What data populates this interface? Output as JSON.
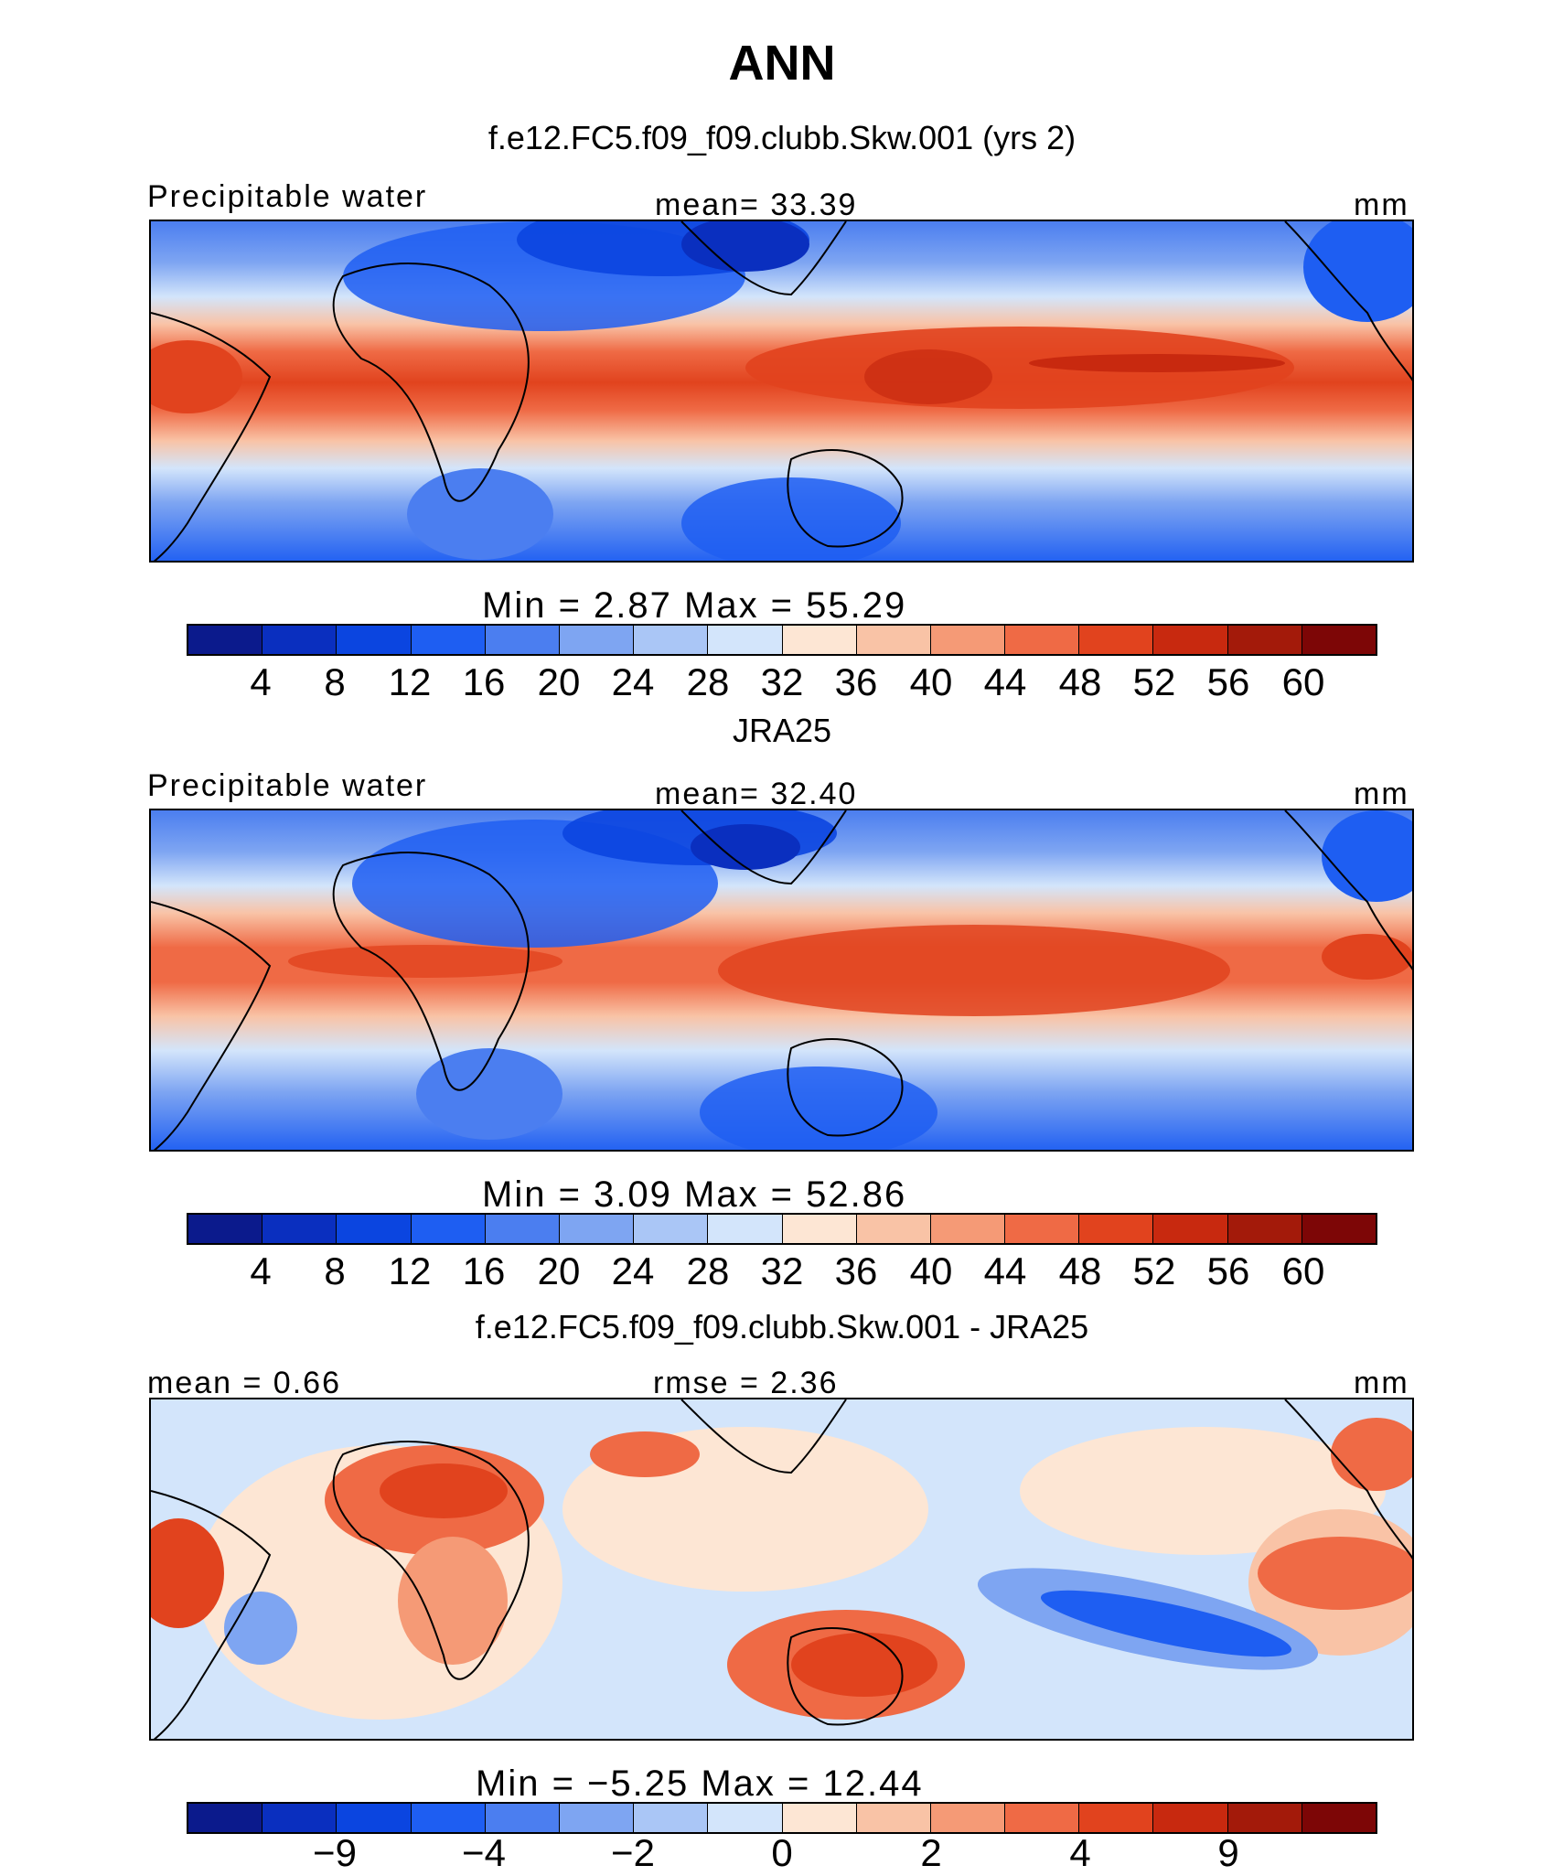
{
  "header": {
    "title": "ANN"
  },
  "colormaps": {
    "absolute": [
      "#0b1a8c",
      "#0a2fbf",
      "#0b45e0",
      "#1e5ef2",
      "#4b7ef0",
      "#7ea5f2",
      "#aac6f6",
      "#d3e5fb",
      "#fde6d4",
      "#f9c3a6",
      "#f59a76",
      "#ef6a45",
      "#e1431e",
      "#c8290f",
      "#a31a0a",
      "#7d0606"
    ],
    "difference": [
      "#0b1a8c",
      "#0a2fbf",
      "#0b45e0",
      "#1e5ef2",
      "#4b7ef0",
      "#7ea5f2",
      "#aac6f6",
      "#d3e5fb",
      "#fde6d4",
      "#f9c3a6",
      "#f59a76",
      "#ef6a45",
      "#e1431e",
      "#c8290f",
      "#a31a0a",
      "#7d0606"
    ]
  },
  "panels": [
    {
      "id": "model",
      "title": "f.e12.FC5.f09_f09.clubb.Skw.001 (yrs 2)",
      "left_label": "Precipitable water",
      "center_label": "mean=   33.39",
      "right_label": "mm",
      "minmax": "Min  =     2.87  Max  =    55.29",
      "colorbar_labels": [
        "4",
        "8",
        "12",
        "16",
        "20",
        "24",
        "28",
        "32",
        "36",
        "40",
        "44",
        "48",
        "52",
        "56",
        "60"
      ]
    },
    {
      "id": "obs",
      "title": "JRA25",
      "left_label": "Precipitable water",
      "center_label": "mean=   32.40",
      "right_label": "mm",
      "minmax": "Min  =     3.09  Max  =    52.86",
      "colorbar_labels": [
        "4",
        "8",
        "12",
        "16",
        "20",
        "24",
        "28",
        "32",
        "36",
        "40",
        "44",
        "48",
        "52",
        "56",
        "60"
      ]
    },
    {
      "id": "diff",
      "title": "f.e12.FC5.f09_f09.clubb.Skw.001 - JRA25",
      "left_label": "mean  =     0.66",
      "center_label": "rmse  =     2.36",
      "right_label": "mm",
      "minmax": "Min  =   −5.25  Max  =    12.44",
      "colorbar_labels": [
        "−9",
        "−4",
        "−2",
        "0",
        "2",
        "4",
        "9"
      ]
    }
  ]
}
